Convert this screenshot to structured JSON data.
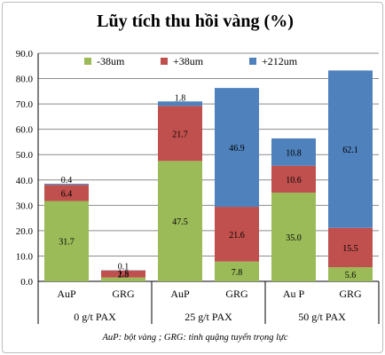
{
  "chart_data": {
    "type": "bar",
    "stacked": true,
    "title": "Lũy tích thu hồi vàng (%)",
    "ylim": [
      0,
      90
    ],
    "yticks": [
      "0.0",
      "10.0",
      "20.0",
      "30.0",
      "40.0",
      "50.0",
      "60.0",
      "70.0",
      "80.0",
      "90.0"
    ],
    "grid": true,
    "legend_position": "top",
    "categories": [
      "AuP",
      "GRG",
      "AuP",
      "GRG",
      "Au P",
      "GRG"
    ],
    "groups": [
      "0 g/t PAX",
      "25 g/t PAX",
      "50 g/t PAX"
    ],
    "series": [
      {
        "name": "-38um",
        "color": "#9bbb59",
        "values": [
          31.7,
          1.5,
          47.5,
          7.8,
          35.0,
          5.6
        ],
        "labels": [
          "31.7",
          "1.5",
          "47.5",
          "7.8",
          "35.0",
          "5.6"
        ]
      },
      {
        "name": "+38um",
        "color": "#c0504d",
        "values": [
          6.4,
          2.8,
          21.7,
          21.6,
          10.6,
          15.5
        ],
        "labels": [
          "6.4",
          "2.8",
          "21.7",
          "21.6",
          "10.6",
          "15.5"
        ]
      },
      {
        "name": "+212um",
        "color": "#4f81bd",
        "values": [
          0.4,
          0.1,
          1.8,
          46.9,
          10.8,
          62.1
        ],
        "labels": [
          "0.4",
          "0.1",
          "1.8",
          "46.9",
          "10.8",
          "62.1"
        ]
      }
    ],
    "footnote": "AuP: bột vàng ; GRG: tinh quặng tuyển trọng lực"
  }
}
